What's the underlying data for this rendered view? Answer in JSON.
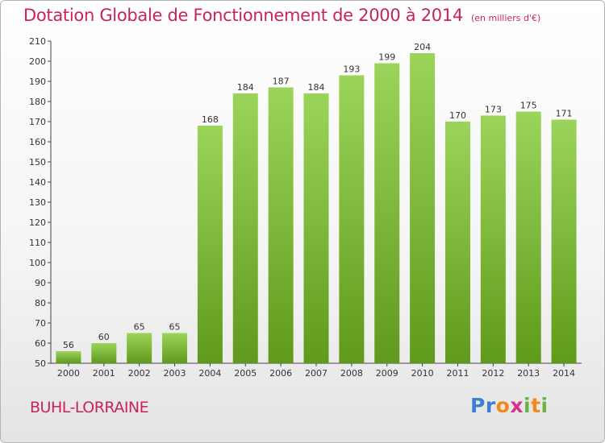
{
  "header": {
    "title": "Dotation Globale de Fonctionnement de 2000 à 2014",
    "unit": "(en milliers d'€)"
  },
  "footer": {
    "commune": "BUHL-LORRAINE"
  },
  "logo": {
    "letters": [
      "P",
      "r",
      "o",
      "x",
      "i",
      "t",
      "i"
    ],
    "colors": [
      "#3d7fd4",
      "#3d7fd4",
      "#f08a1c",
      "#d8328a",
      "#6db33f",
      "#f08a1c",
      "#6db33f"
    ]
  },
  "chart_data": {
    "type": "bar",
    "categories": [
      "2000",
      "2001",
      "2002",
      "2003",
      "2004",
      "2005",
      "2006",
      "2007",
      "2008",
      "2009",
      "2010",
      "2011",
      "2012",
      "2013",
      "2014"
    ],
    "values": [
      56,
      60,
      65,
      65,
      168,
      184,
      187,
      184,
      193,
      199,
      204,
      170,
      173,
      175,
      171
    ],
    "ylim": [
      50,
      210
    ],
    "yticks": [
      50,
      60,
      70,
      80,
      90,
      100,
      110,
      120,
      130,
      140,
      150,
      160,
      170,
      180,
      190,
      200,
      210
    ],
    "grid": false,
    "legend": "none",
    "colors": {
      "bar_light": "#9bd45a",
      "bar_dark": "#5f9a1c",
      "title": "#c8245a"
    }
  }
}
